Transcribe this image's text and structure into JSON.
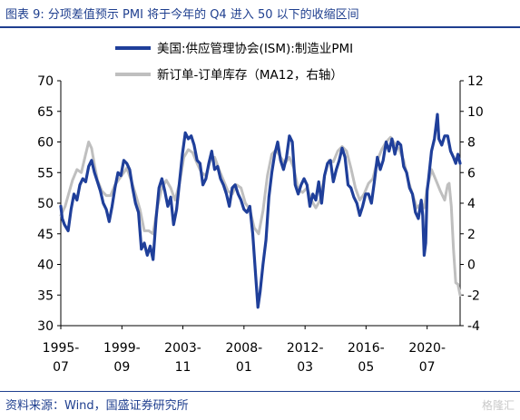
{
  "figure": {
    "title": "图表 9:  分项差值预示 PMI 将于今年的 Q4 进入 50 以下的收缩区间",
    "source": "资料来源：Wind，国盛证券研究所",
    "watermark": "格隆汇"
  },
  "chart_data": {
    "type": "line",
    "title": "",
    "xlabel": "",
    "ylabel": "",
    "y_left": {
      "ylim": [
        30,
        70
      ],
      "ticks": [
        30,
        35,
        40,
        45,
        50,
        55,
        60,
        65,
        70
      ]
    },
    "y_right": {
      "ylim": [
        -4,
        12
      ],
      "ticks": [
        -4,
        -2,
        0,
        2,
        4,
        6,
        8,
        10,
        12
      ]
    },
    "x_ticks": [
      {
        "date": 1995.5,
        "line1": "1995-",
        "line2": "07"
      },
      {
        "date": 1999.67,
        "line1": "1999-",
        "line2": "09"
      },
      {
        "date": 2003.83,
        "line1": "2003-",
        "line2": "11"
      },
      {
        "date": 2008.0,
        "line1": "2008-",
        "line2": "01"
      },
      {
        "date": 2012.17,
        "line1": "2012-",
        "line2": "03"
      },
      {
        "date": 2016.33,
        "line1": "2016-",
        "line2": "05"
      },
      {
        "date": 2020.5,
        "line1": "2020-",
        "line2": "07"
      }
    ],
    "x_range": [
      1995.5,
      2022.75
    ],
    "grid": false,
    "legend_position": "top",
    "series": [
      {
        "name": "美国:供应管理协会(ISM):制造业PMI",
        "axis": "left",
        "color": "#1f3f9a",
        "points": [
          [
            1995.5,
            49.5
          ],
          [
            1995.6,
            47.5
          ],
          [
            1995.75,
            46.5
          ],
          [
            1996.0,
            45.5
          ],
          [
            1996.2,
            49.0
          ],
          [
            1996.4,
            51.5
          ],
          [
            1996.6,
            50.5
          ],
          [
            1996.8,
            53.0
          ],
          [
            1997.0,
            54.0
          ],
          [
            1997.2,
            53.5
          ],
          [
            1997.4,
            56.0
          ],
          [
            1997.6,
            57.0
          ],
          [
            1997.8,
            55.0
          ],
          [
            1998.0,
            53.5
          ],
          [
            1998.2,
            52.0
          ],
          [
            1998.4,
            50.0
          ],
          [
            1998.6,
            49.0
          ],
          [
            1998.8,
            47.0
          ],
          [
            1999.0,
            49.5
          ],
          [
            1999.2,
            52.5
          ],
          [
            1999.4,
            55.0
          ],
          [
            1999.6,
            54.5
          ],
          [
            1999.8,
            57.0
          ],
          [
            2000.0,
            56.5
          ],
          [
            2000.2,
            55.5
          ],
          [
            2000.4,
            52.5
          ],
          [
            2000.6,
            50.0
          ],
          [
            2000.8,
            48.5
          ],
          [
            2001.0,
            42.5
          ],
          [
            2001.2,
            43.5
          ],
          [
            2001.4,
            41.5
          ],
          [
            2001.6,
            43.0
          ],
          [
            2001.8,
            40.8
          ],
          [
            2002.0,
            47.5
          ],
          [
            2002.2,
            52.5
          ],
          [
            2002.4,
            54.0
          ],
          [
            2002.6,
            52.0
          ],
          [
            2002.8,
            49.5
          ],
          [
            2003.0,
            51.0
          ],
          [
            2003.2,
            46.5
          ],
          [
            2003.4,
            49.0
          ],
          [
            2003.6,
            53.5
          ],
          [
            2003.8,
            58.0
          ],
          [
            2004.0,
            61.5
          ],
          [
            2004.2,
            60.5
          ],
          [
            2004.4,
            61.0
          ],
          [
            2004.6,
            59.5
          ],
          [
            2004.8,
            57.0
          ],
          [
            2005.0,
            56.5
          ],
          [
            2005.2,
            53.0
          ],
          [
            2005.4,
            54.0
          ],
          [
            2005.6,
            56.5
          ],
          [
            2005.8,
            58.5
          ],
          [
            2006.0,
            55.5
          ],
          [
            2006.2,
            56.0
          ],
          [
            2006.4,
            54.0
          ],
          [
            2006.6,
            53.0
          ],
          [
            2006.8,
            51.5
          ],
          [
            2007.0,
            49.5
          ],
          [
            2007.2,
            52.5
          ],
          [
            2007.4,
            53.0
          ],
          [
            2007.6,
            51.5
          ],
          [
            2007.8,
            50.5
          ],
          [
            2008.0,
            49.0
          ],
          [
            2008.2,
            48.5
          ],
          [
            2008.4,
            49.5
          ],
          [
            2008.6,
            45.0
          ],
          [
            2008.8,
            38.0
          ],
          [
            2008.95,
            33.0
          ],
          [
            2009.1,
            35.5
          ],
          [
            2009.3,
            40.0
          ],
          [
            2009.5,
            44.0
          ],
          [
            2009.7,
            51.0
          ],
          [
            2009.9,
            55.0
          ],
          [
            2010.1,
            58.0
          ],
          [
            2010.3,
            60.0
          ],
          [
            2010.5,
            57.0
          ],
          [
            2010.7,
            55.5
          ],
          [
            2010.9,
            57.5
          ],
          [
            2011.1,
            61.0
          ],
          [
            2011.3,
            60.0
          ],
          [
            2011.5,
            53.0
          ],
          [
            2011.7,
            51.5
          ],
          [
            2011.9,
            53.0
          ],
          [
            2012.1,
            54.0
          ],
          [
            2012.3,
            53.0
          ],
          [
            2012.5,
            49.5
          ],
          [
            2012.7,
            51.5
          ],
          [
            2012.9,
            50.5
          ],
          [
            2013.1,
            53.5
          ],
          [
            2013.3,
            50.0
          ],
          [
            2013.5,
            54.5
          ],
          [
            2013.7,
            56.5
          ],
          [
            2013.9,
            57.0
          ],
          [
            2014.1,
            53.5
          ],
          [
            2014.3,
            55.5
          ],
          [
            2014.5,
            57.0
          ],
          [
            2014.7,
            59.0
          ],
          [
            2014.9,
            57.5
          ],
          [
            2015.1,
            53.0
          ],
          [
            2015.3,
            52.5
          ],
          [
            2015.5,
            51.0
          ],
          [
            2015.7,
            50.0
          ],
          [
            2015.9,
            48.0
          ],
          [
            2016.1,
            49.5
          ],
          [
            2016.3,
            51.5
          ],
          [
            2016.5,
            51.5
          ],
          [
            2016.7,
            50.0
          ],
          [
            2016.9,
            53.5
          ],
          [
            2017.1,
            57.5
          ],
          [
            2017.3,
            55.5
          ],
          [
            2017.5,
            57.0
          ],
          [
            2017.7,
            60.0
          ],
          [
            2017.9,
            58.5
          ],
          [
            2018.1,
            60.5
          ],
          [
            2018.3,
            58.0
          ],
          [
            2018.5,
            60.0
          ],
          [
            2018.7,
            59.5
          ],
          [
            2018.9,
            56.0
          ],
          [
            2019.1,
            55.0
          ],
          [
            2019.3,
            52.5
          ],
          [
            2019.5,
            51.5
          ],
          [
            2019.7,
            48.5
          ],
          [
            2019.9,
            47.5
          ],
          [
            2020.1,
            50.5
          ],
          [
            2020.2,
            48.0
          ],
          [
            2020.3,
            41.5
          ],
          [
            2020.4,
            43.5
          ],
          [
            2020.5,
            52.0
          ],
          [
            2020.6,
            54.0
          ],
          [
            2020.8,
            58.5
          ],
          [
            2021.0,
            60.5
          ],
          [
            2021.2,
            64.5
          ],
          [
            2021.3,
            60.5
          ],
          [
            2021.5,
            59.5
          ],
          [
            2021.7,
            61.0
          ],
          [
            2021.9,
            61.0
          ],
          [
            2022.1,
            58.5
          ],
          [
            2022.3,
            57.5
          ],
          [
            2022.45,
            56.5
          ],
          [
            2022.6,
            58.0
          ],
          [
            2022.75,
            56.5
          ]
        ]
      },
      {
        "name": "新订单-订单库存（MA12，右轴）",
        "axis": "right",
        "color": "#bfbfbf",
        "points": [
          [
            1995.5,
            3.2
          ],
          [
            1995.8,
            3.8
          ],
          [
            1996.0,
            4.5
          ],
          [
            1996.3,
            5.5
          ],
          [
            1996.6,
            6.2
          ],
          [
            1996.9,
            6.0
          ],
          [
            1997.2,
            7.2
          ],
          [
            1997.4,
            8.0
          ],
          [
            1997.6,
            7.6
          ],
          [
            1997.8,
            6.5
          ],
          [
            1998.0,
            5.5
          ],
          [
            1998.3,
            4.8
          ],
          [
            1998.6,
            4.5
          ],
          [
            1998.9,
            4.5
          ],
          [
            1999.2,
            5.2
          ],
          [
            1999.5,
            5.6
          ],
          [
            1999.8,
            6.0
          ],
          [
            2000.0,
            6.3
          ],
          [
            2000.3,
            5.5
          ],
          [
            2000.6,
            4.6
          ],
          [
            2000.9,
            3.6
          ],
          [
            2001.2,
            2.2
          ],
          [
            2001.5,
            2.2
          ],
          [
            2001.8,
            2.0
          ],
          [
            2002.1,
            3.8
          ],
          [
            2002.4,
            5.0
          ],
          [
            2002.7,
            5.5
          ],
          [
            2003.0,
            5.0
          ],
          [
            2003.3,
            4.2
          ],
          [
            2003.6,
            5.3
          ],
          [
            2003.9,
            7.0
          ],
          [
            2004.2,
            7.5
          ],
          [
            2004.5,
            7.3
          ],
          [
            2004.8,
            6.6
          ],
          [
            2005.1,
            6.0
          ],
          [
            2005.4,
            5.8
          ],
          [
            2005.7,
            6.8
          ],
          [
            2006.0,
            7.0
          ],
          [
            2006.3,
            6.2
          ],
          [
            2006.6,
            5.5
          ],
          [
            2006.9,
            4.8
          ],
          [
            2007.2,
            4.6
          ],
          [
            2007.5,
            5.2
          ],
          [
            2007.8,
            5.0
          ],
          [
            2008.1,
            4.0
          ],
          [
            2008.4,
            3.6
          ],
          [
            2008.7,
            2.4
          ],
          [
            2009.0,
            2.0
          ],
          [
            2009.3,
            3.5
          ],
          [
            2009.6,
            5.8
          ],
          [
            2009.9,
            7.2
          ],
          [
            2010.2,
            7.5
          ],
          [
            2010.5,
            7.0
          ],
          [
            2010.8,
            6.6
          ],
          [
            2011.1,
            7.0
          ],
          [
            2011.4,
            6.3
          ],
          [
            2011.7,
            4.9
          ],
          [
            2012.0,
            4.7
          ],
          [
            2012.3,
            5.0
          ],
          [
            2012.6,
            4.2
          ],
          [
            2012.9,
            3.7
          ],
          [
            2013.2,
            4.2
          ],
          [
            2013.5,
            5.8
          ],
          [
            2013.8,
            6.8
          ],
          [
            2014.1,
            6.7
          ],
          [
            2014.4,
            7.4
          ],
          [
            2014.7,
            7.7
          ],
          [
            2015.0,
            7.4
          ],
          [
            2015.3,
            6.3
          ],
          [
            2015.6,
            5.0
          ],
          [
            2015.9,
            4.2
          ],
          [
            2016.2,
            4.6
          ],
          [
            2016.5,
            5.3
          ],
          [
            2016.8,
            5.6
          ],
          [
            2017.1,
            6.8
          ],
          [
            2017.4,
            7.5
          ],
          [
            2017.7,
            8.0
          ],
          [
            2018.0,
            8.3
          ],
          [
            2018.3,
            7.9
          ],
          [
            2018.6,
            7.5
          ],
          [
            2018.9,
            6.8
          ],
          [
            2019.2,
            5.5
          ],
          [
            2019.5,
            4.6
          ],
          [
            2019.8,
            3.7
          ],
          [
            2020.1,
            4.0
          ],
          [
            2020.3,
            3.7
          ],
          [
            2020.5,
            5.0
          ],
          [
            2020.8,
            6.2
          ],
          [
            2021.1,
            5.5
          ],
          [
            2021.4,
            4.8
          ],
          [
            2021.7,
            4.2
          ],
          [
            2021.9,
            5.2
          ],
          [
            2022.0,
            5.3
          ],
          [
            2022.15,
            3.8
          ],
          [
            2022.3,
            1.0
          ],
          [
            2022.45,
            -1.2
          ],
          [
            2022.6,
            -1.3
          ],
          [
            2022.75,
            -2.0
          ]
        ]
      }
    ]
  }
}
